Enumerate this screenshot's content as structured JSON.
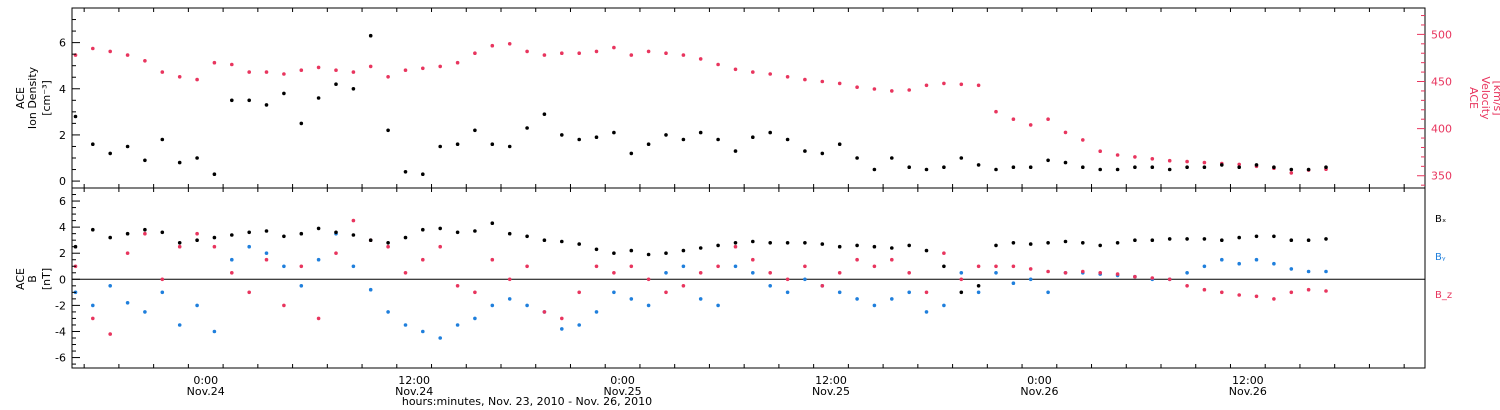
{
  "colors": {
    "density": "#000000",
    "speed": "#e8355e",
    "bx": "#000000",
    "by": "#1f7fdc",
    "bz": "#e8355e",
    "axis": "#000000"
  },
  "x_axis": {
    "title": "hours:minutes, Nov. 23, 2010 - Nov. 26, 2010",
    "tick_hours": [
      0,
      12,
      24,
      36,
      48,
      60
    ],
    "tick_labels_top": [
      "0:00",
      "12:00",
      "0:00",
      "12:00",
      "0:00",
      "12:00"
    ],
    "tick_labels_bottom": [
      "Nov.24",
      "Nov.24",
      "Nov.25",
      "Nov.25",
      "Nov.26",
      "Nov.26"
    ]
  },
  "chart_data": [
    {
      "type": "scatter",
      "panel": "plasma",
      "x_units": "hours since 2010-11-24 00:00",
      "xlim": [
        -7.7,
        70.2
      ],
      "left_axis": {
        "label_line1": "ACE",
        "label_line2": "Ion Density",
        "units": "[cm⁻³]",
        "ylim": [
          -0.3,
          7.5
        ],
        "ticks": [
          0,
          2,
          4,
          6
        ]
      },
      "right_axis": {
        "label_line1": "ACE",
        "label_line2": "Velocity",
        "units": "[km/s]",
        "ylim": [
          337,
          528
        ],
        "ticks": [
          350,
          400,
          450,
          500
        ]
      },
      "series": [
        {
          "key": "density",
          "x": [
            -7.5,
            -6.5,
            -5.5,
            -4.5,
            -3.5,
            -2.5,
            -1.5,
            -0.5,
            0.5,
            1.5,
            2.5,
            3.5,
            4.5,
            5.5,
            6.5,
            7.5,
            8.5,
            9.5,
            10.5,
            11.5,
            12.5,
            13.5,
            14.5,
            15.5,
            16.5,
            17.5,
            18.5,
            19.5,
            20.5,
            21.5,
            22.5,
            23.5,
            24.5,
            25.5,
            26.5,
            27.5,
            28.5,
            29.5,
            30.5,
            31.5,
            32.5,
            33.5,
            34.5,
            35.5,
            36.5,
            37.5,
            38.5,
            39.5,
            40.5,
            41.5,
            42.5,
            43.5,
            44.5,
            45.5,
            46.5,
            47.5,
            48.5,
            49.5,
            50.5,
            51.5,
            52.5,
            53.5,
            54.5,
            55.5,
            56.5,
            57.5,
            58.5,
            59.5,
            60.5,
            61.5,
            62.5,
            63.5,
            64.5
          ],
          "values": [
            2.8,
            1.6,
            1.2,
            1.5,
            0.9,
            1.8,
            0.8,
            1.0,
            0.3,
            3.5,
            3.5,
            3.3,
            3.8,
            2.5,
            3.6,
            4.2,
            4.0,
            6.3,
            2.2,
            0.4,
            0.3,
            1.5,
            1.6,
            2.2,
            1.6,
            1.5,
            2.3,
            2.9,
            2.0,
            1.8,
            1.9,
            2.1,
            1.2,
            1.6,
            2.0,
            1.8,
            2.1,
            1.8,
            1.3,
            1.9,
            2.1,
            1.8,
            1.3,
            1.2,
            1.6,
            1.0,
            0.5,
            1.0,
            0.6,
            0.5,
            0.6,
            1.0,
            0.7,
            0.5,
            0.6,
            0.6,
            0.9,
            0.8,
            0.6,
            0.5,
            0.5,
            0.6,
            0.6,
            0.5,
            0.6,
            0.6,
            0.7,
            0.6,
            0.7,
            0.6,
            0.5,
            0.5,
            0.6
          ]
        },
        {
          "key": "speed",
          "x": [
            -7.5,
            -6.5,
            -5.5,
            -4.5,
            -3.5,
            -2.5,
            -1.5,
            -0.5,
            0.5,
            1.5,
            2.5,
            3.5,
            4.5,
            5.5,
            6.5,
            7.5,
            8.5,
            9.5,
            10.5,
            11.5,
            12.5,
            13.5,
            14.5,
            15.5,
            16.5,
            17.5,
            18.5,
            19.5,
            20.5,
            21.5,
            22.5,
            23.5,
            24.5,
            25.5,
            26.5,
            27.5,
            28.5,
            29.5,
            30.5,
            31.5,
            32.5,
            33.5,
            34.5,
            35.5,
            36.5,
            37.5,
            38.5,
            39.5,
            40.5,
            41.5,
            42.5,
            43.5,
            44.5,
            45.5,
            46.5,
            47.5,
            48.5,
            49.5,
            50.5,
            51.5,
            52.5,
            53.5,
            54.5,
            55.5,
            56.5,
            57.5,
            58.5,
            59.5,
            60.5,
            61.5,
            62.5,
            63.5,
            64.5
          ],
          "values": [
            478,
            485,
            482,
            478,
            472,
            460,
            455,
            452,
            470,
            468,
            460,
            460,
            458,
            462,
            465,
            462,
            460,
            466,
            455,
            462,
            464,
            466,
            470,
            480,
            488,
            490,
            482,
            478,
            480,
            480,
            482,
            486,
            478,
            482,
            480,
            478,
            474,
            468,
            463,
            460,
            458,
            455,
            452,
            450,
            448,
            444,
            442,
            440,
            441,
            446,
            448,
            447,
            446,
            418,
            410,
            404,
            410,
            396,
            388,
            376,
            372,
            370,
            368,
            366,
            365,
            364,
            363,
            362,
            360,
            358,
            353,
            356,
            357
          ]
        }
      ]
    },
    {
      "type": "scatter",
      "panel": "imf",
      "x_units": "hours since 2010-11-24 00:00",
      "xlim": [
        -7.7,
        70.2
      ],
      "y_axis": {
        "label_line1": "ACE",
        "label_line2": "B",
        "units": "[nT]",
        "ylim": [
          -6.8,
          7.0
        ],
        "ticks": [
          -6,
          -4,
          -2,
          0,
          2,
          4,
          6
        ]
      },
      "zero_line": 0,
      "series": [
        {
          "key": "bx",
          "name": "Bₓ",
          "x": [
            -7.5,
            -6.5,
            -5.5,
            -4.5,
            -3.5,
            -2.5,
            -1.5,
            -0.5,
            0.5,
            1.5,
            2.5,
            3.5,
            4.5,
            5.5,
            6.5,
            7.5,
            8.5,
            9.5,
            10.5,
            11.5,
            12.5,
            13.5,
            14.5,
            15.5,
            16.5,
            17.5,
            18.5,
            19.5,
            20.5,
            21.5,
            22.5,
            23.5,
            24.5,
            25.5,
            26.5,
            27.5,
            28.5,
            29.5,
            30.5,
            31.5,
            32.5,
            33.5,
            34.5,
            35.5,
            36.5,
            37.5,
            38.5,
            39.5,
            40.5,
            41.5,
            42.5,
            43.5,
            44.5,
            45.5,
            46.5,
            47.5,
            48.5,
            49.5,
            50.5,
            51.5,
            52.5,
            53.5,
            54.5,
            55.5,
            56.5,
            57.5,
            58.5,
            59.5,
            60.5,
            61.5,
            62.5,
            63.5,
            64.5
          ],
          "values": [
            2.5,
            3.8,
            3.2,
            3.5,
            3.8,
            3.6,
            2.8,
            3.0,
            3.2,
            3.4,
            3.6,
            3.7,
            3.3,
            3.5,
            3.9,
            3.6,
            3.4,
            3.0,
            2.8,
            3.2,
            3.8,
            3.9,
            3.6,
            3.7,
            4.3,
            3.5,
            3.3,
            3.0,
            2.9,
            2.7,
            2.3,
            2.0,
            2.2,
            1.9,
            2.0,
            2.2,
            2.4,
            2.6,
            2.8,
            2.9,
            2.8,
            2.8,
            2.8,
            2.7,
            2.5,
            2.6,
            2.5,
            2.4,
            2.6,
            2.2,
            1.0,
            -1.0,
            -0.5,
            2.6,
            2.8,
            2.7,
            2.8,
            2.9,
            2.8,
            2.6,
            2.8,
            3.0,
            3.0,
            3.1,
            3.1,
            3.1,
            3.0,
            3.2,
            3.3,
            3.3,
            3.0,
            3.0,
            3.1
          ]
        },
        {
          "key": "by",
          "name": "Bᵧ",
          "x": [
            -7.5,
            -6.5,
            -5.5,
            -4.5,
            -3.5,
            -2.5,
            -1.5,
            -0.5,
            0.5,
            1.5,
            2.5,
            3.5,
            4.5,
            5.5,
            6.5,
            7.5,
            8.5,
            9.5,
            10.5,
            11.5,
            12.5,
            13.5,
            14.5,
            15.5,
            16.5,
            17.5,
            18.5,
            19.5,
            20.5,
            21.5,
            22.5,
            23.5,
            24.5,
            25.5,
            26.5,
            27.5,
            28.5,
            29.5,
            30.5,
            31.5,
            32.5,
            33.5,
            34.5,
            35.5,
            36.5,
            37.5,
            38.5,
            39.5,
            40.5,
            41.5,
            42.5,
            43.5,
            44.5,
            45.5,
            46.5,
            47.5,
            48.5,
            49.5,
            50.5,
            51.5,
            52.5,
            53.5,
            54.5,
            55.5,
            56.5,
            57.5,
            58.5,
            59.5,
            60.5,
            61.5,
            62.5,
            63.5,
            64.5
          ],
          "values": [
            -1.0,
            -2.0,
            -0.5,
            -1.8,
            -2.5,
            -1.0,
            -3.5,
            -2.0,
            -4.0,
            1.5,
            2.5,
            2.0,
            1.0,
            -0.5,
            1.5,
            3.5,
            1.0,
            -0.8,
            -2.5,
            -3.5,
            -4.0,
            -4.5,
            -3.5,
            -3.0,
            -2.0,
            -1.5,
            -2.0,
            -2.5,
            -3.8,
            -3.5,
            -2.5,
            -1.0,
            -1.5,
            -2.0,
            0.5,
            1.0,
            -1.5,
            -2.0,
            1.0,
            0.5,
            -0.5,
            -1.0,
            0.0,
            -0.5,
            -1.0,
            -1.5,
            -2.0,
            -1.5,
            -1.0,
            -2.5,
            -2.0,
            0.5,
            -1.0,
            0.5,
            -0.3,
            0.0,
            -1.0,
            0.5,
            0.5,
            0.4,
            0.3,
            0.2,
            0.0,
            0.0,
            0.5,
            1.0,
            1.5,
            1.2,
            1.5,
            1.2,
            0.8,
            0.6,
            0.6
          ]
        },
        {
          "key": "bz",
          "name": "B_z",
          "x": [
            -7.5,
            -6.5,
            -5.5,
            -4.5,
            -3.5,
            -2.5,
            -1.5,
            -0.5,
            0.5,
            1.5,
            2.5,
            3.5,
            4.5,
            5.5,
            6.5,
            7.5,
            8.5,
            9.5,
            10.5,
            11.5,
            12.5,
            13.5,
            14.5,
            15.5,
            16.5,
            17.5,
            18.5,
            19.5,
            20.5,
            21.5,
            22.5,
            23.5,
            24.5,
            25.5,
            26.5,
            27.5,
            28.5,
            29.5,
            30.5,
            31.5,
            32.5,
            33.5,
            34.5,
            35.5,
            36.5,
            37.5,
            38.5,
            39.5,
            40.5,
            41.5,
            42.5,
            43.5,
            44.5,
            45.5,
            46.5,
            47.5,
            48.5,
            49.5,
            50.5,
            51.5,
            52.5,
            53.5,
            54.5,
            55.5,
            56.5,
            57.5,
            58.5,
            59.5,
            60.5,
            61.5,
            62.5,
            63.5,
            64.5
          ],
          "values": [
            1.0,
            -3.0,
            -4.2,
            2.0,
            3.5,
            0.0,
            2.5,
            3.5,
            2.5,
            0.5,
            -1.0,
            1.5,
            -2.0,
            1.0,
            -3.0,
            2.0,
            4.5,
            3.0,
            2.5,
            0.5,
            1.5,
            2.5,
            -0.5,
            -1.0,
            1.5,
            0.0,
            1.0,
            -2.5,
            -3.0,
            -1.0,
            1.0,
            0.5,
            1.0,
            0.0,
            -1.0,
            -0.5,
            0.5,
            1.0,
            2.5,
            1.5,
            0.5,
            0.0,
            1.0,
            -0.5,
            0.5,
            1.5,
            1.0,
            1.5,
            0.5,
            -1.0,
            2.0,
            0.0,
            1.0,
            1.0,
            1.0,
            0.8,
            0.6,
            0.5,
            0.6,
            0.5,
            0.4,
            0.2,
            0.1,
            0.0,
            -0.5,
            -0.8,
            -1.0,
            -1.2,
            -1.3,
            -1.5,
            -1.0,
            -0.8,
            -0.9
          ]
        }
      ]
    }
  ]
}
